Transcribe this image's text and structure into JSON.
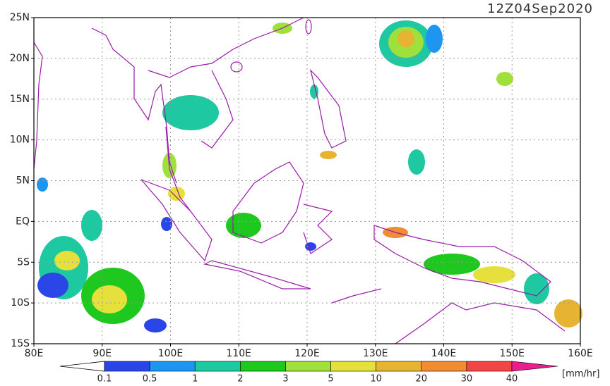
{
  "title": "12Z04Sep2020",
  "lon_range": [
    80,
    160
  ],
  "lat_range": [
    -15,
    25
  ],
  "lon_ticks": [
    {
      "value": 80,
      "label": "80E"
    },
    {
      "value": 90,
      "label": "90E"
    },
    {
      "value": 100,
      "label": "100E"
    },
    {
      "value": 110,
      "label": "110E"
    },
    {
      "value": 120,
      "label": "120E"
    },
    {
      "value": 130,
      "label": "130E"
    },
    {
      "value": 140,
      "label": "140E"
    },
    {
      "value": 150,
      "label": "150E"
    },
    {
      "value": 160,
      "label": "160E"
    }
  ],
  "lat_ticks": [
    {
      "value": 25,
      "label": "25N"
    },
    {
      "value": 20,
      "label": "20N"
    },
    {
      "value": 15,
      "label": "15N"
    },
    {
      "value": 10,
      "label": "10N"
    },
    {
      "value": 5,
      "label": "5N"
    },
    {
      "value": 0,
      "label": "EQ"
    },
    {
      "value": -5,
      "label": "5S"
    },
    {
      "value": -10,
      "label": "10S"
    },
    {
      "value": -15,
      "label": "15S"
    }
  ],
  "colorbar": {
    "levels": [
      0.1,
      0.5,
      1,
      2,
      3,
      5,
      10,
      20,
      30,
      40
    ],
    "colors": [
      "#2a46e6",
      "#1e96f0",
      "#1ec8a0",
      "#1ec81e",
      "#a0e03c",
      "#e6e03c",
      "#e6b432",
      "#f08c32",
      "#f04646",
      "#ec1e8c"
    ],
    "unit": "[mm/hr]"
  }
}
